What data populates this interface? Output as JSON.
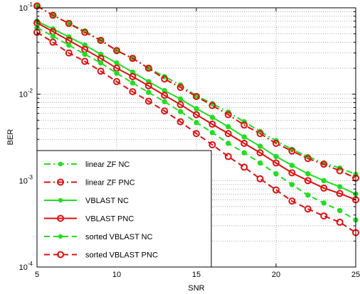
{
  "chart_data": {
    "type": "line",
    "xlabel": "SNR",
    "ylabel": "BER",
    "xlim": [
      5,
      25
    ],
    "ylim": [
      0.0001,
      0.1
    ],
    "yscale": "log",
    "grid": true,
    "legend_position": "bottom-left",
    "x_ticks": [
      "5",
      "10",
      "15",
      "20",
      "25"
    ],
    "y_ticks": [
      {
        "base": "10",
        "exp": "-4",
        "value": 0.0001
      },
      {
        "base": "10",
        "exp": "-3",
        "value": 0.001
      },
      {
        "base": "10",
        "exp": "-2",
        "value": 0.01
      },
      {
        "base": "10",
        "exp": "-1",
        "value": 0.1
      }
    ],
    "x": [
      5,
      6,
      7,
      8,
      9,
      10,
      11,
      12,
      13,
      14,
      15,
      16,
      17,
      18,
      19,
      20,
      21,
      22,
      23,
      24,
      25
    ],
    "series": [
      {
        "name": "linear ZF NC",
        "color": "#22dd22",
        "line_style": "dashdot",
        "marker": "dot",
        "values": [
          0.105,
          0.082,
          0.066,
          0.054,
          0.042,
          0.032,
          0.026,
          0.02,
          0.016,
          0.0128,
          0.0096,
          0.0078,
          0.0062,
          0.0048,
          0.0037,
          0.0029,
          0.0023,
          0.0019,
          0.0016,
          0.0014,
          0.00118
        ]
      },
      {
        "name": "linear ZF PNC",
        "color": "#dd1111",
        "line_style": "dashdot",
        "marker": "circle",
        "values": [
          0.105,
          0.082,
          0.066,
          0.052,
          0.042,
          0.032,
          0.026,
          0.02,
          0.015,
          0.012,
          0.0094,
          0.0074,
          0.0058,
          0.0044,
          0.0035,
          0.0027,
          0.0022,
          0.0018,
          0.00155,
          0.0013,
          0.00107
        ]
      },
      {
        "name": "VBLAST NC",
        "color": "#22dd22",
        "line_style": "solid",
        "marker": "dot",
        "values": [
          0.07,
          0.057,
          0.046,
          0.037,
          0.029,
          0.023,
          0.018,
          0.014,
          0.011,
          0.0088,
          0.0068,
          0.0054,
          0.0042,
          0.0032,
          0.0025,
          0.0019,
          0.0015,
          0.0012,
          0.001,
          0.00085,
          0.0007
        ]
      },
      {
        "name": "VBLAST PNC",
        "color": "#dd1111",
        "line_style": "solid",
        "marker": "circle",
        "values": [
          0.067,
          0.053,
          0.042,
          0.033,
          0.026,
          0.02,
          0.016,
          0.0125,
          0.0097,
          0.0076,
          0.0058,
          0.0045,
          0.0035,
          0.0027,
          0.0021,
          0.0016,
          0.00123,
          0.001,
          0.00082,
          0.00071,
          0.0006
        ]
      },
      {
        "name": "sorted VBLAST NC",
        "color": "#22dd22",
        "line_style": "dashed",
        "marker": "dot",
        "values": [
          0.059,
          0.047,
          0.037,
          0.029,
          0.023,
          0.0175,
          0.0135,
          0.0105,
          0.0082,
          0.0063,
          0.0047,
          0.0036,
          0.0027,
          0.0021,
          0.0016,
          0.0012,
          0.0009,
          0.00068,
          0.00055,
          0.00045,
          0.00035
        ]
      },
      {
        "name": "sorted VBLAST PNC",
        "color": "#dd1111",
        "line_style": "dashed",
        "marker": "circle",
        "values": [
          0.052,
          0.04,
          0.03,
          0.024,
          0.0185,
          0.014,
          0.0107,
          0.0083,
          0.0064,
          0.0048,
          0.0035,
          0.0026,
          0.0019,
          0.00143,
          0.00105,
          0.00078,
          0.00058,
          0.00047,
          0.00039,
          0.00033,
          0.00025
        ]
      }
    ]
  }
}
